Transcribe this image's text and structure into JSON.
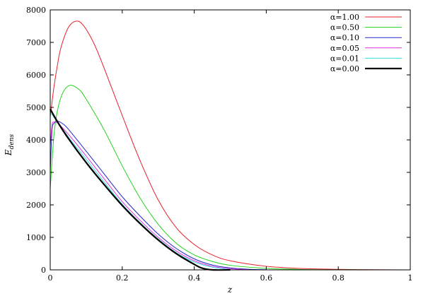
{
  "chart_data": {
    "type": "line",
    "xlabel": "z",
    "ylabel_main": "E",
    "ylabel_sub": "dens",
    "xlim": [
      0,
      1
    ],
    "ylim": [
      0,
      8000
    ],
    "x_ticks": [
      0,
      0.2,
      0.4,
      0.6,
      0.8,
      1
    ],
    "x_tick_labels": [
      "0",
      "0.2",
      "0.4",
      "0.6",
      "0.8",
      "1"
    ],
    "y_ticks": [
      0,
      1000,
      2000,
      3000,
      4000,
      5000,
      6000,
      7000,
      8000
    ],
    "y_tick_labels": [
      "0",
      "1000",
      "2000",
      "3000",
      "4000",
      "5000",
      "6000",
      "7000",
      "8000"
    ],
    "grid": false,
    "legend_position": "top-right",
    "series": [
      {
        "name": "α=1.00",
        "color": "#e8202a",
        "x": [
          0,
          0.01,
          0.02,
          0.03,
          0.05,
          0.07,
          0.09,
          0.12,
          0.15,
          0.2,
          0.25,
          0.3,
          0.35,
          0.4,
          0.45,
          0.5,
          0.6,
          0.7,
          0.8,
          0.9,
          1.0
        ],
        "y": [
          4700,
          5600,
          6300,
          6850,
          7450,
          7650,
          7550,
          7000,
          6200,
          4750,
          3350,
          2150,
          1300,
          780,
          460,
          280,
          110,
          40,
          15,
          5,
          0
        ]
      },
      {
        "name": "α=0.50",
        "color": "#22d21c",
        "x": [
          0,
          0.01,
          0.02,
          0.035,
          0.055,
          0.08,
          0.1,
          0.15,
          0.2,
          0.25,
          0.3,
          0.35,
          0.4,
          0.45,
          0.5,
          0.6,
          0.7,
          0.8,
          1.0
        ],
        "y": [
          2500,
          4100,
          4900,
          5450,
          5680,
          5550,
          5250,
          4300,
          3200,
          2200,
          1400,
          820,
          460,
          260,
          140,
          45,
          12,
          3,
          0
        ]
      },
      {
        "name": "α=0.10",
        "color": "#2828c8",
        "x": [
          0,
          0.005,
          0.01,
          0.02,
          0.04,
          0.06,
          0.1,
          0.15,
          0.2,
          0.25,
          0.3,
          0.35,
          0.4,
          0.45,
          0.5,
          0.55,
          0.6
        ],
        "y": [
          3000,
          4300,
          4500,
          4580,
          4450,
          4200,
          3650,
          2950,
          2250,
          1650,
          1100,
          660,
          340,
          150,
          60,
          20,
          5
        ]
      },
      {
        "name": "α=0.05",
        "color": "#e030e0",
        "x": [
          0,
          0.005,
          0.01,
          0.02,
          0.04,
          0.06,
          0.1,
          0.15,
          0.2,
          0.25,
          0.3,
          0.35,
          0.4,
          0.45,
          0.5,
          0.55
        ],
        "y": [
          3800,
          4450,
          4550,
          4520,
          4300,
          4050,
          3500,
          2800,
          2100,
          1520,
          1000,
          580,
          280,
          110,
          35,
          5
        ]
      },
      {
        "name": "α=0.01",
        "color": "#30e0e0",
        "x": [
          0,
          0.005,
          0.01,
          0.02,
          0.04,
          0.06,
          0.1,
          0.15,
          0.2,
          0.25,
          0.3,
          0.35,
          0.4,
          0.45,
          0.5
        ],
        "y": [
          4800,
          4780,
          4700,
          4550,
          4250,
          3950,
          3400,
          2700,
          2020,
          1450,
          950,
          530,
          240,
          80,
          10
        ]
      },
      {
        "name": "α=0.00",
        "color": "#000000",
        "width": 2.2,
        "x": [
          0,
          0.02,
          0.05,
          0.1,
          0.15,
          0.2,
          0.25,
          0.3,
          0.35,
          0.4,
          0.42,
          0.45,
          0.5
        ],
        "y": [
          4950,
          4560,
          4050,
          3300,
          2620,
          1980,
          1420,
          920,
          500,
          170,
          60,
          0,
          0
        ]
      }
    ]
  }
}
